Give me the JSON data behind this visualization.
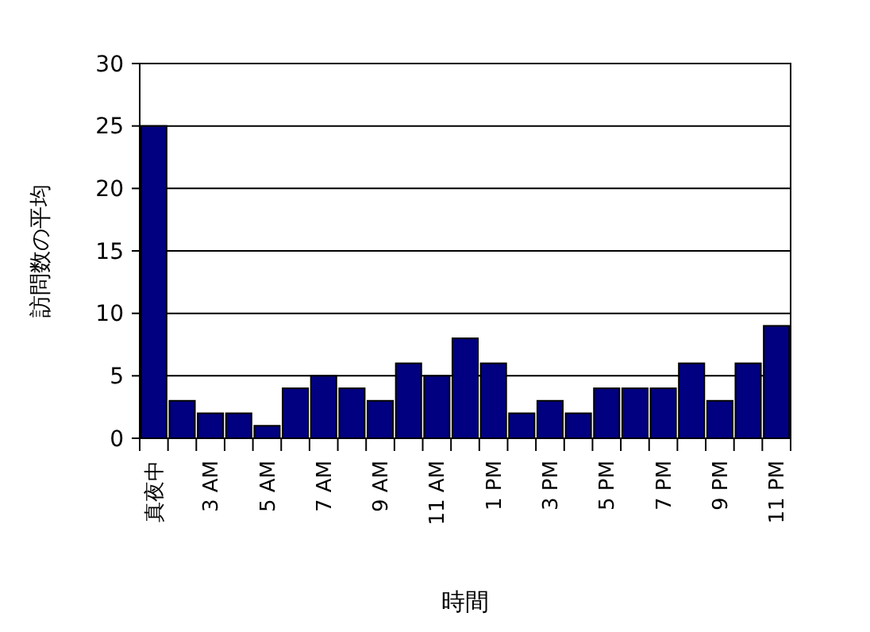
{
  "chart_data": {
    "type": "bar",
    "xlabel": "時間",
    "ylabel": "訪問数の平均",
    "categories": [
      "真夜中",
      null,
      "3 AM",
      null,
      "5 AM",
      null,
      "7 AM",
      null,
      "9 AM",
      null,
      "11 AM",
      null,
      "1 PM",
      null,
      "3 PM",
      null,
      "5 PM",
      null,
      "7 PM",
      null,
      "9 PM",
      null,
      "11 PM"
    ],
    "values": [
      25,
      3,
      2,
      2,
      1,
      4,
      5,
      4,
      3,
      6,
      5,
      8,
      6,
      2,
      3,
      2,
      4,
      4,
      4,
      6,
      3,
      6,
      9
    ],
    "color": "#000080",
    "ylim": [
      0,
      30
    ],
    "yticks": [
      0,
      5,
      10,
      15,
      20,
      25,
      30
    ],
    "grid": "y"
  }
}
